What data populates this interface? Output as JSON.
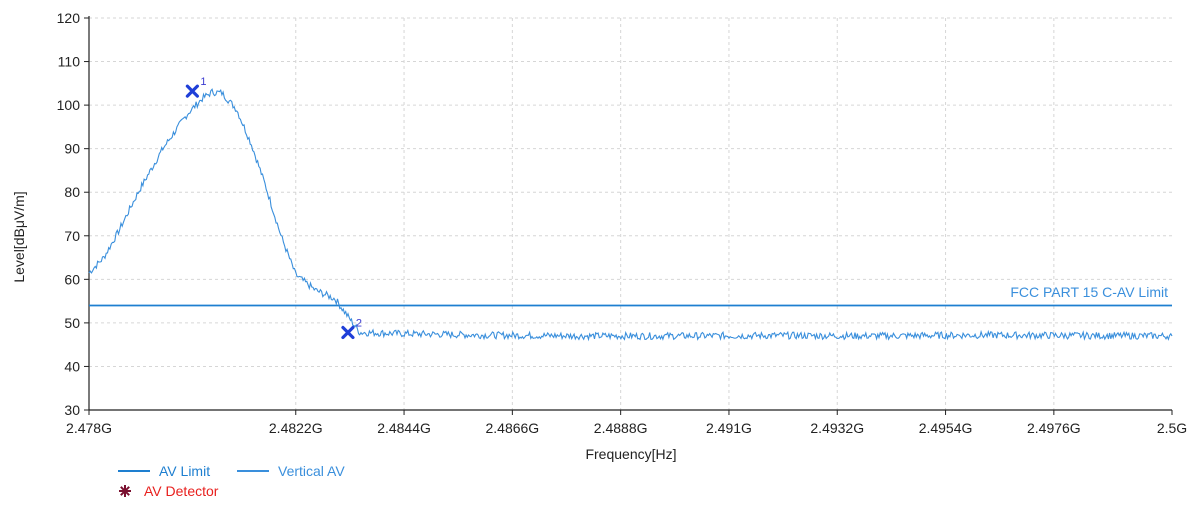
{
  "chart_data": {
    "type": "line",
    "xlabel": "Frequency[Hz]",
    "ylabel": "Level[dBμV/m]",
    "xlim": [
      2.478,
      2.5
    ],
    "ylim": [
      30,
      120
    ],
    "x_tick_labels": [
      "2.478G",
      "2.4822G",
      "2.4844G",
      "2.4866G",
      "2.4888G",
      "2.491G",
      "2.4932G",
      "2.4954G",
      "2.4976G",
      "2.5G"
    ],
    "x_tick_values": [
      2.478,
      2.4822,
      2.4844,
      2.4866,
      2.4888,
      2.491,
      2.4932,
      2.4954,
      2.4976,
      2.5
    ],
    "y_tick_labels": [
      "30",
      "40",
      "50",
      "60",
      "70",
      "80",
      "90",
      "100",
      "110",
      "120"
    ],
    "y_tick_values": [
      30,
      40,
      50,
      60,
      70,
      80,
      90,
      100,
      110,
      120
    ],
    "grid": true,
    "legend_position": "bottom-left",
    "series": [
      {
        "name": "AV Limit",
        "color": "#1e7fd0",
        "x": [
          2.478,
          2.5
        ],
        "y": [
          54,
          54
        ]
      },
      {
        "name": "Vertical AV",
        "color": "#3a8fdc",
        "x": [
          2.478,
          2.4783,
          2.4786,
          2.479,
          2.4795,
          2.48,
          2.4803,
          2.4805,
          2.4807,
          2.481,
          2.4813,
          2.4816,
          2.4819,
          2.4822,
          2.4826,
          2.483,
          2.4835,
          2.4845,
          2.486,
          2.488,
          2.49,
          2.492,
          2.494,
          2.496,
          2.498,
          2.5
        ],
        "y": [
          61.5,
          65,
          71,
          80,
          90,
          98,
          101.5,
          103,
          102.8,
          99,
          91,
          81,
          70,
          61,
          57.5,
          55.5,
          47.8,
          47.5,
          47.2,
          47.0,
          47.0,
          47.1,
          47.0,
          47.2,
          47.1,
          47.0
        ],
        "noise": 0.8
      }
    ],
    "markers": [
      {
        "label": "1",
        "x": 2.4801,
        "y": 103.2
      },
      {
        "label": "2",
        "x": 2.48326,
        "y": 47.8
      }
    ],
    "limit_label": "FCC PART 15 C-AV Limit",
    "legend": [
      {
        "name": "AV Limit",
        "kind": "line",
        "color": "#1e7fd0"
      },
      {
        "name": "Vertical AV",
        "kind": "line",
        "color": "#3a8fdc"
      },
      {
        "name": "AV Detector",
        "kind": "star",
        "color": "#e8201e",
        "icon_color": "#7a1030"
      }
    ],
    "colors": {
      "grid": "#d6d6d6",
      "axis": "#222222",
      "marker": "#1f3fd8",
      "marker_label": "#3b3bd0",
      "limit_label": "#3a8fdc"
    }
  }
}
